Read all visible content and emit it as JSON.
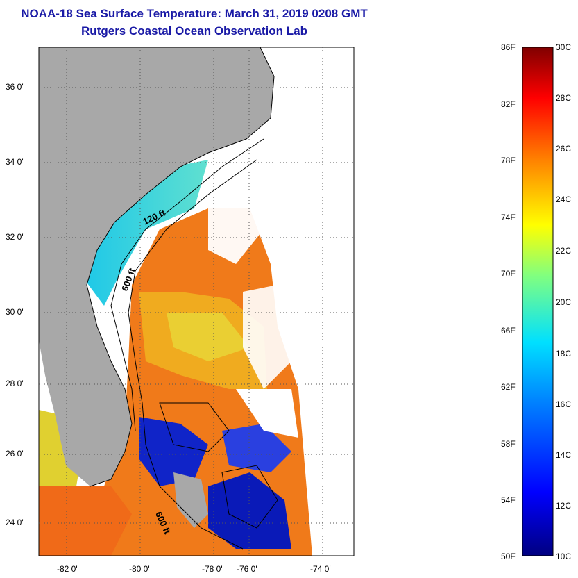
{
  "title": {
    "line1": "NOAA-18 Sea Surface Temperature:  March 31, 2019 0208 GMT",
    "line2": "Rutgers Coastal Ocean Observation Lab"
  },
  "map": {
    "lat_labels": [
      "36 0'",
      "34 0'",
      "32 0'",
      "30 0'",
      "28 0'",
      "26 0'",
      "24 0'"
    ],
    "lon_labels": [
      "-82 0'",
      "-80 0'",
      "-78 0'",
      "-76 0'",
      "-74 0'"
    ],
    "contour_labels": [
      "120 ft",
      "600 ft",
      "600 ft"
    ],
    "land_color": "#a8a8a8",
    "cloud_color": "#ffffff"
  },
  "colorbar": {
    "f_labels": [
      "86F",
      "82F",
      "78F",
      "74F",
      "70F",
      "66F",
      "62F",
      "58F",
      "54F",
      "50F"
    ],
    "c_labels": [
      "30C",
      "28C",
      "26C",
      "24C",
      "22C",
      "20C",
      "18C",
      "16C",
      "14C",
      "12C",
      "10C"
    ],
    "gradient": [
      "#000080",
      "#0000ff",
      "#0080ff",
      "#00ffff",
      "#80ff80",
      "#ffff00",
      "#ff8000",
      "#ff0000",
      "#800000"
    ]
  }
}
